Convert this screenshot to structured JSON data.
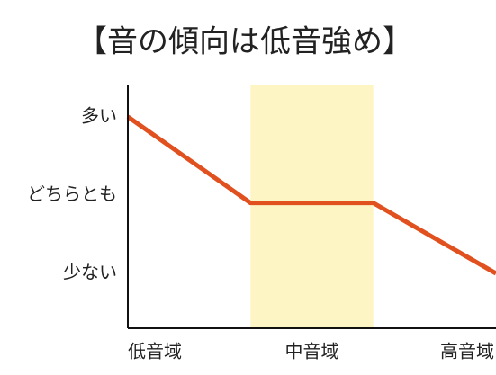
{
  "chart_data": {
    "type": "line",
    "title": "【音の傾向は低音強め】",
    "x": [
      0,
      1,
      2,
      3
    ],
    "xlim": [
      0,
      3
    ],
    "categories": [
      "低音域",
      "中音域",
      "高音域"
    ],
    "values": [
      3,
      1.9,
      1.9,
      1
    ],
    "color": "#e0511f",
    "highlight": [
      1,
      2
    ],
    "highlight_color": "#fdf5c4",
    "ylim": [
      0.3,
      3.4
    ],
    "yticks": [
      {
        "value": 1,
        "label": "少ない"
      },
      {
        "value": 2,
        "label": "どちらとも"
      },
      {
        "value": 3,
        "label": "多い"
      }
    ]
  }
}
